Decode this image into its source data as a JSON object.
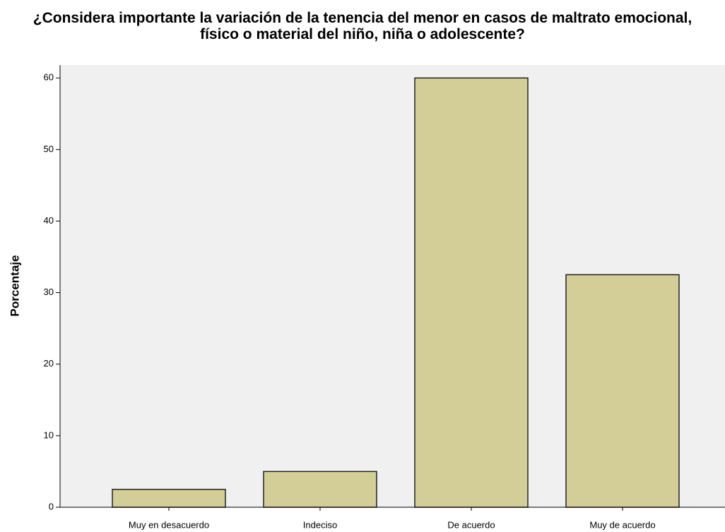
{
  "chart_data": {
    "type": "bar",
    "title": "¿Considera importante la variación de la tenencia del menor en casos de maltrato emocional, físico o material del niño, niña o adolescente?",
    "y_label": "Porcentaje",
    "categories": [
      "Muy en desacuerdo",
      "Indeciso",
      "De acuerdo",
      "Muy de acuerdo"
    ],
    "values": [
      2.5,
      5,
      60,
      32.5
    ],
    "color": "#d3ce97",
    "ylim": [
      0,
      61.8
    ],
    "yticks": [
      0,
      10,
      20,
      30,
      40,
      50,
      60
    ],
    "grid": false
  }
}
